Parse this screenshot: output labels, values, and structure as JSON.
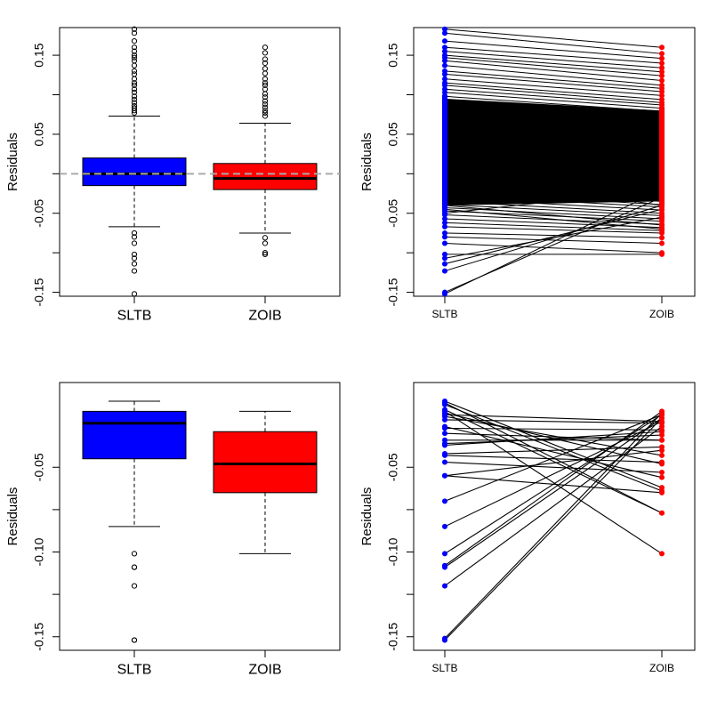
{
  "colors": {
    "sltb": "#0000FF",
    "zoib": "#FF0000",
    "line": "#000000",
    "zero_line": "#AAAAAA"
  },
  "chart_data": [
    {
      "type": "boxplot",
      "ylabel": "Residuals",
      "categories": [
        "SLTB",
        "ZOIB"
      ],
      "ylim": [
        -0.155,
        0.185
      ],
      "yticks": [
        -0.15,
        -0.05,
        0.05,
        0.15
      ],
      "ytick_labels": [
        "-0.15",
        "-0.05",
        "0.05",
        "0.15"
      ],
      "reference_line": 0,
      "boxes": [
        {
          "name": "SLTB",
          "q1": -0.015,
          "median": 0.0,
          "q3": 0.02,
          "whisker_low": -0.067,
          "whisker_high": 0.073,
          "outliers": [
            0.183,
            0.178,
            0.168,
            0.16,
            0.155,
            0.15,
            0.147,
            0.143,
            0.137,
            0.13,
            0.126,
            0.12,
            0.115,
            0.112,
            0.107,
            0.103,
            0.098,
            0.094,
            0.09,
            0.086,
            0.083,
            0.08,
            0.077,
            -0.075,
            -0.08,
            -0.088,
            -0.102,
            -0.107,
            -0.114,
            -0.123,
            -0.152
          ]
        },
        {
          "name": "ZOIB",
          "q1": -0.02,
          "median": -0.006,
          "q3": 0.013,
          "whisker_low": -0.075,
          "whisker_high": 0.064,
          "outliers": [
            0.16,
            0.153,
            0.145,
            0.14,
            0.133,
            0.127,
            0.12,
            0.115,
            0.112,
            0.107,
            0.101,
            0.097,
            0.092,
            0.088,
            0.084,
            0.08,
            0.077,
            0.073,
            -0.081,
            -0.088,
            -0.1,
            -0.102
          ]
        }
      ]
    },
    {
      "type": "paired-line",
      "ylabel": "Residuals",
      "categories": [
        "SLTB",
        "ZOIB"
      ],
      "ylim": [
        -0.155,
        0.185
      ],
      "yticks": [
        -0.15,
        -0.05,
        0.05,
        0.15
      ],
      "ytick_labels": [
        "-0.15",
        "-0.05",
        "0.05",
        "0.15"
      ],
      "pairs": [
        [
          0.183,
          0.16
        ],
        [
          0.178,
          0.152
        ],
        [
          0.168,
          0.146
        ],
        [
          0.16,
          0.14
        ],
        [
          0.155,
          0.134
        ],
        [
          0.15,
          0.129
        ],
        [
          0.147,
          0.124
        ],
        [
          0.143,
          0.118
        ],
        [
          0.137,
          0.112
        ],
        [
          0.13,
          0.108
        ],
        [
          0.126,
          0.104
        ],
        [
          0.12,
          0.099
        ],
        [
          0.115,
          0.094
        ],
        [
          0.112,
          0.09
        ],
        [
          0.107,
          0.087
        ],
        [
          0.103,
          0.083
        ],
        [
          0.098,
          0.079
        ],
        [
          0.094,
          0.076
        ],
        [
          0.09,
          0.072
        ],
        [
          0.086,
          0.068
        ],
        [
          0.083,
          0.065
        ],
        [
          0.08,
          0.061
        ],
        [
          0.077,
          0.058
        ],
        [
          0.073,
          0.054
        ],
        [
          0.069,
          0.051
        ],
        [
          0.065,
          0.047
        ],
        [
          0.061,
          0.043
        ],
        [
          0.057,
          0.039
        ],
        [
          0.053,
          0.035
        ],
        [
          0.049,
          0.031
        ],
        [
          0.045,
          0.027
        ],
        [
          0.041,
          0.023
        ],
        [
          0.037,
          0.019
        ],
        [
          0.033,
          0.015
        ],
        [
          0.029,
          0.011
        ],
        [
          0.025,
          0.007
        ],
        [
          0.021,
          0.003
        ],
        [
          0.017,
          -0.001
        ],
        [
          0.013,
          -0.005
        ],
        [
          0.009,
          -0.009
        ],
        [
          0.005,
          -0.012
        ],
        [
          0.001,
          -0.016
        ],
        [
          -0.003,
          -0.02
        ],
        [
          -0.007,
          -0.024
        ],
        [
          -0.011,
          -0.028
        ],
        [
          -0.015,
          -0.031
        ],
        [
          -0.019,
          -0.035
        ],
        [
          -0.023,
          -0.039
        ],
        [
          -0.027,
          -0.042
        ],
        [
          -0.031,
          -0.046
        ],
        [
          -0.035,
          -0.05
        ],
        [
          -0.039,
          -0.053
        ],
        [
          -0.043,
          -0.057
        ],
        [
          -0.047,
          -0.06
        ],
        [
          -0.052,
          -0.064
        ],
        [
          -0.057,
          -0.068
        ],
        [
          -0.062,
          -0.072
        ],
        [
          -0.067,
          -0.075
        ],
        [
          -0.075,
          -0.081
        ],
        [
          -0.08,
          -0.088
        ],
        [
          -0.088,
          -0.1
        ],
        [
          -0.102,
          -0.102
        ],
        [
          -0.107,
          -0.055
        ],
        [
          -0.114,
          -0.045
        ],
        [
          -0.123,
          -0.04
        ],
        [
          -0.152,
          -0.02
        ],
        [
          -0.15,
          -0.03
        ],
        [
          -0.04,
          -0.065
        ],
        [
          -0.045,
          -0.07
        ],
        [
          0.0,
          -0.04
        ],
        [
          0.01,
          0.03
        ],
        [
          0.04,
          0.0
        ],
        [
          0.06,
          0.02
        ],
        [
          -0.02,
          0.01
        ],
        [
          -0.03,
          -0.01
        ],
        [
          0.02,
          0.05
        ],
        [
          0.035,
          0.06
        ],
        [
          -0.01,
          0.04
        ],
        [
          0.05,
          0.01
        ],
        [
          -0.05,
          -0.02
        ]
      ]
    },
    {
      "type": "boxplot",
      "ylabel": "Residuals",
      "categories": [
        "SLTB",
        "ZOIB"
      ],
      "ylim": [
        -0.158,
        -0.0
      ],
      "yticks": [
        -0.15,
        -0.1,
        -0.05
      ],
      "ytick_labels": [
        "-0.15",
        "-0.10",
        "-0.05"
      ],
      "boxes": [
        {
          "name": "SLTB",
          "q1": -0.045,
          "median": -0.024,
          "q3": -0.017,
          "whisker_low": -0.085,
          "whisker_high": -0.011,
          "outliers": [
            -0.101,
            -0.109,
            -0.109,
            -0.12,
            -0.152,
            -0.152
          ]
        },
        {
          "name": "ZOIB",
          "q1": -0.065,
          "median": -0.048,
          "q3": -0.029,
          "whisker_low": -0.101,
          "whisker_high": -0.017,
          "outliers": []
        }
      ]
    },
    {
      "type": "paired-line",
      "ylabel": "Residuals",
      "categories": [
        "SLTB",
        "ZOIB"
      ],
      "ylim": [
        -0.158,
        -0.0
      ],
      "yticks": [
        -0.15,
        -0.1,
        -0.05
      ],
      "ytick_labels": [
        "-0.15",
        "-0.10",
        "-0.05"
      ],
      "pairs": [
        [
          -0.011,
          -0.062
        ],
        [
          -0.012,
          -0.077
        ],
        [
          -0.016,
          -0.077
        ],
        [
          -0.017,
          -0.101
        ],
        [
          -0.018,
          -0.048
        ],
        [
          -0.019,
          -0.023
        ],
        [
          -0.022,
          -0.024
        ],
        [
          -0.027,
          -0.028
        ],
        [
          -0.03,
          -0.034
        ],
        [
          -0.034,
          -0.034
        ],
        [
          -0.037,
          -0.029
        ],
        [
          -0.042,
          -0.038
        ],
        [
          -0.043,
          -0.047
        ],
        [
          -0.047,
          -0.053
        ],
        [
          -0.055,
          -0.04
        ],
        [
          -0.07,
          -0.019
        ],
        [
          -0.085,
          -0.023
        ],
        [
          -0.101,
          -0.019
        ],
        [
          -0.108,
          -0.017
        ],
        [
          -0.109,
          -0.021
        ],
        [
          -0.12,
          -0.026
        ],
        [
          -0.151,
          -0.018
        ],
        [
          -0.152,
          -0.021
        ],
        [
          -0.013,
          -0.064
        ],
        [
          -0.02,
          -0.043
        ],
        [
          -0.026,
          -0.056
        ],
        [
          -0.036,
          -0.031
        ],
        [
          -0.055,
          -0.065
        ]
      ]
    }
  ]
}
